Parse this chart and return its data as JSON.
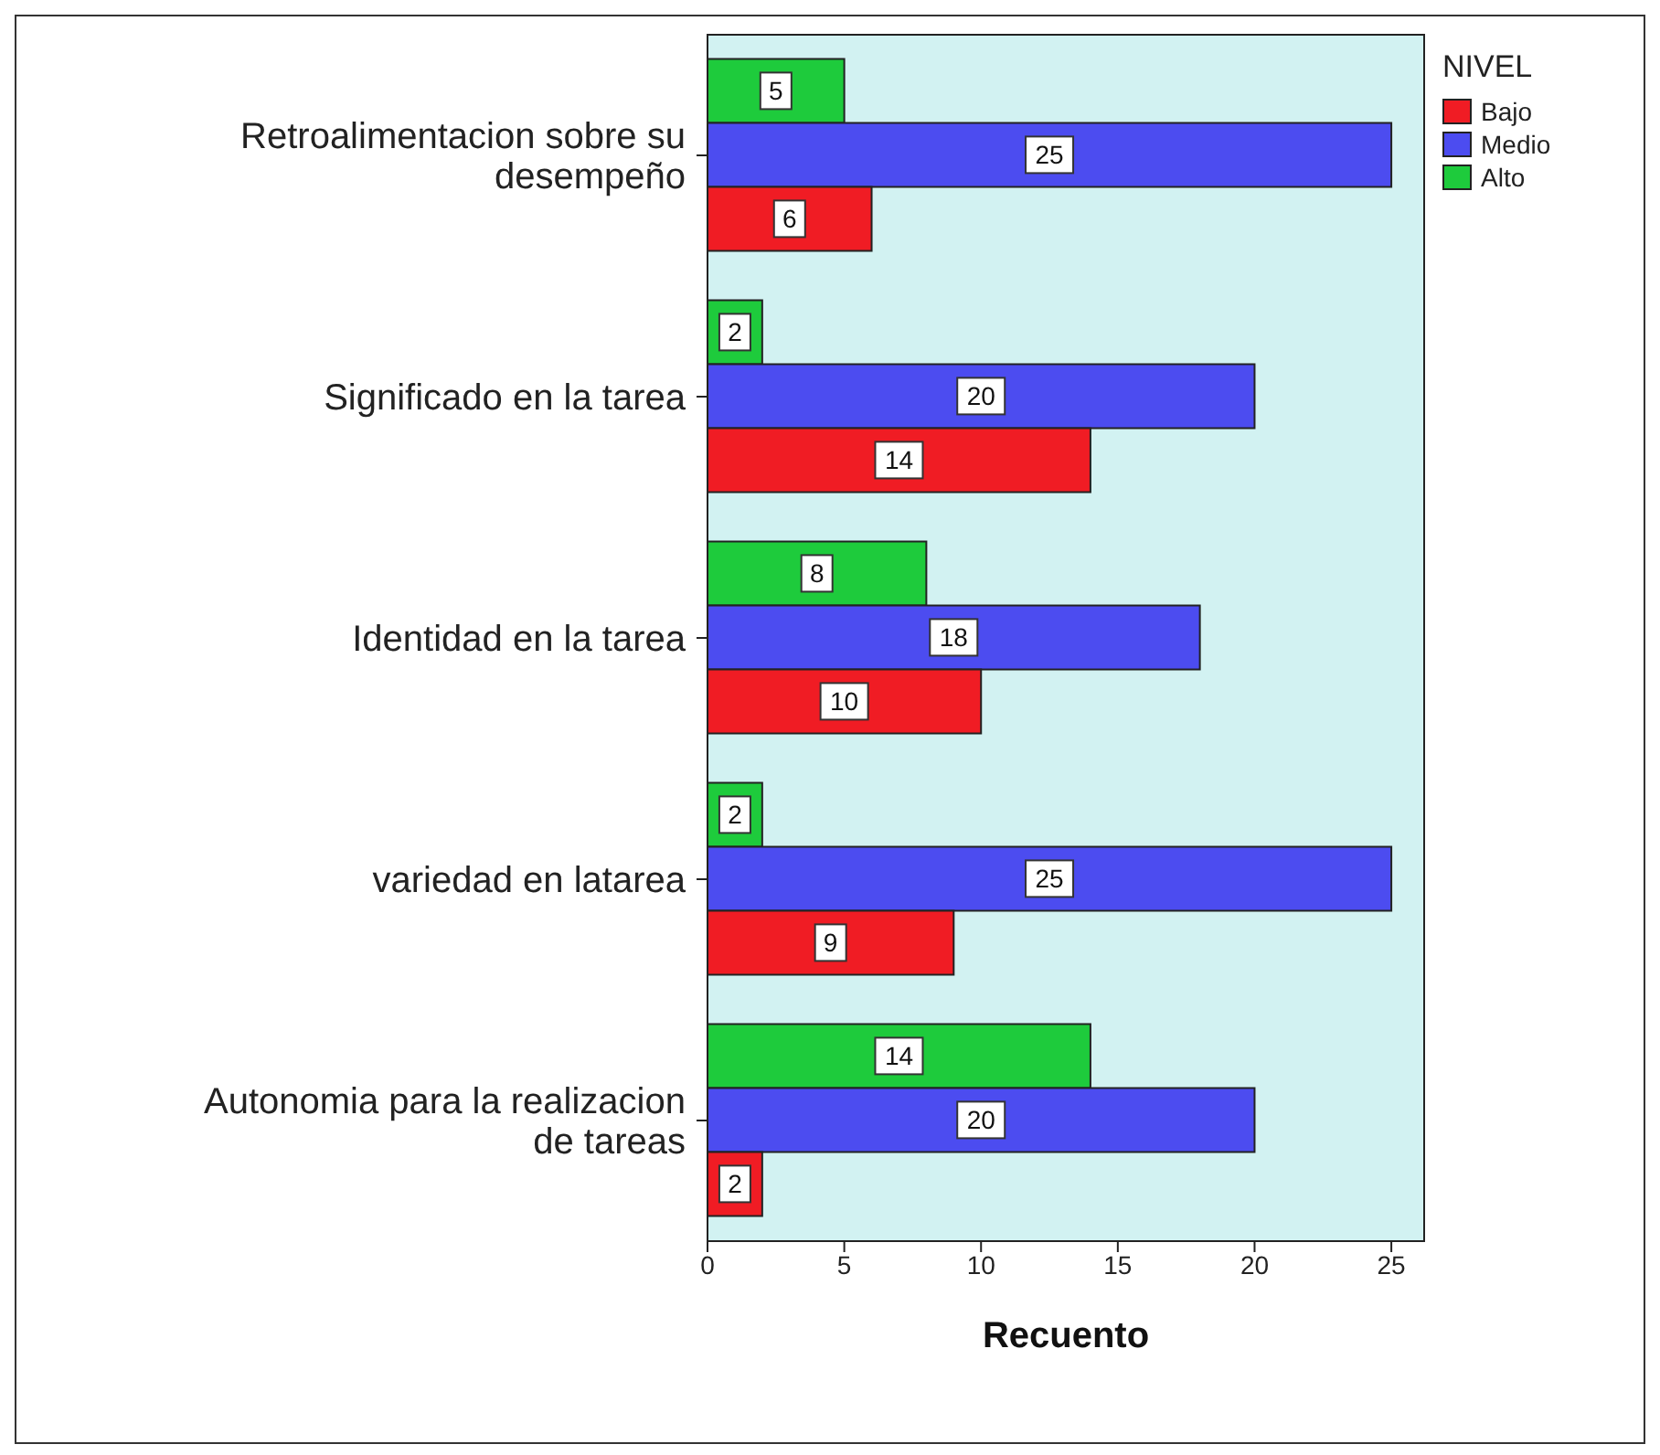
{
  "chart_data": {
    "type": "bar",
    "orientation": "horizontal",
    "xlabel": "Recuento",
    "legend_title": "NIVEL",
    "legend": "top right",
    "data_labels": true,
    "categories": [
      "Retroalimentacion sobre su desempeño",
      "Significado en la tarea",
      "Identidad en la tarea",
      "variedad en latarea",
      "Autonomia para la realizacion de tareas"
    ],
    "series": [
      {
        "name": "Bajo",
        "color": "#f01c24",
        "values": [
          6,
          14,
          10,
          9,
          2
        ]
      },
      {
        "name": "Medio",
        "color": "#4c4cf0",
        "values": [
          25,
          20,
          18,
          25,
          20
        ]
      },
      {
        "name": "Alto",
        "color": "#1ecb3c",
        "values": [
          5,
          2,
          8,
          2,
          14
        ]
      }
    ],
    "xlim": [
      0,
      26.2
    ],
    "xticks": [
      0,
      5,
      10,
      15,
      20,
      25
    ]
  }
}
